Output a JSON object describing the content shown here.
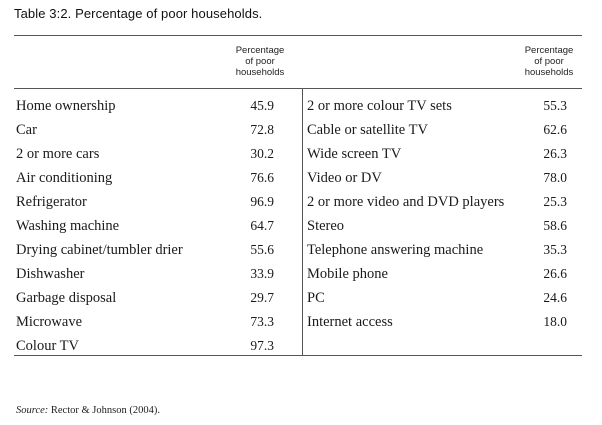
{
  "title": "Table 3:2. Percentage of poor households.",
  "column_header": [
    "Percentage",
    "of poor",
    "households"
  ],
  "left_rows": [
    {
      "label": "Home ownership",
      "value": "45.9"
    },
    {
      "label": "Car",
      "value": "72.8"
    },
    {
      "label": "2 or more cars",
      "value": "30.2"
    },
    {
      "label": "Air conditioning",
      "value": "76.6"
    },
    {
      "label": "Refrigerator",
      "value": "96.9"
    },
    {
      "label": "Washing machine",
      "value": "64.7"
    },
    {
      "label": "Drying cabinet/tumbler drier",
      "value": "55.6"
    },
    {
      "label": "Dishwasher",
      "value": "33.9"
    },
    {
      "label": "Garbage disposal",
      "value": "29.7"
    },
    {
      "label": "Microwave",
      "value": "73.3"
    },
    {
      "label": "Colour TV",
      "value": "97.3"
    }
  ],
  "right_rows": [
    {
      "label": "2 or more colour TV sets",
      "value": "55.3"
    },
    {
      "label": "Cable or satellite TV",
      "value": "62.6"
    },
    {
      "label": "Wide screen TV",
      "value": "26.3"
    },
    {
      "label": "Video or DV",
      "value": "78.0"
    },
    {
      "label": "2 or more video and DVD players",
      "value": "25.3"
    },
    {
      "label": "Stereo",
      "value": "58.6"
    },
    {
      "label": "Telephone answering machine",
      "value": "35.3"
    },
    {
      "label": "Mobile phone",
      "value": "26.6"
    },
    {
      "label": "PC",
      "value": "24.6"
    },
    {
      "label": "Internet access",
      "value": "18.0"
    }
  ],
  "source": {
    "label": "Source:",
    "text": " Rector & Johnson (2004)."
  }
}
